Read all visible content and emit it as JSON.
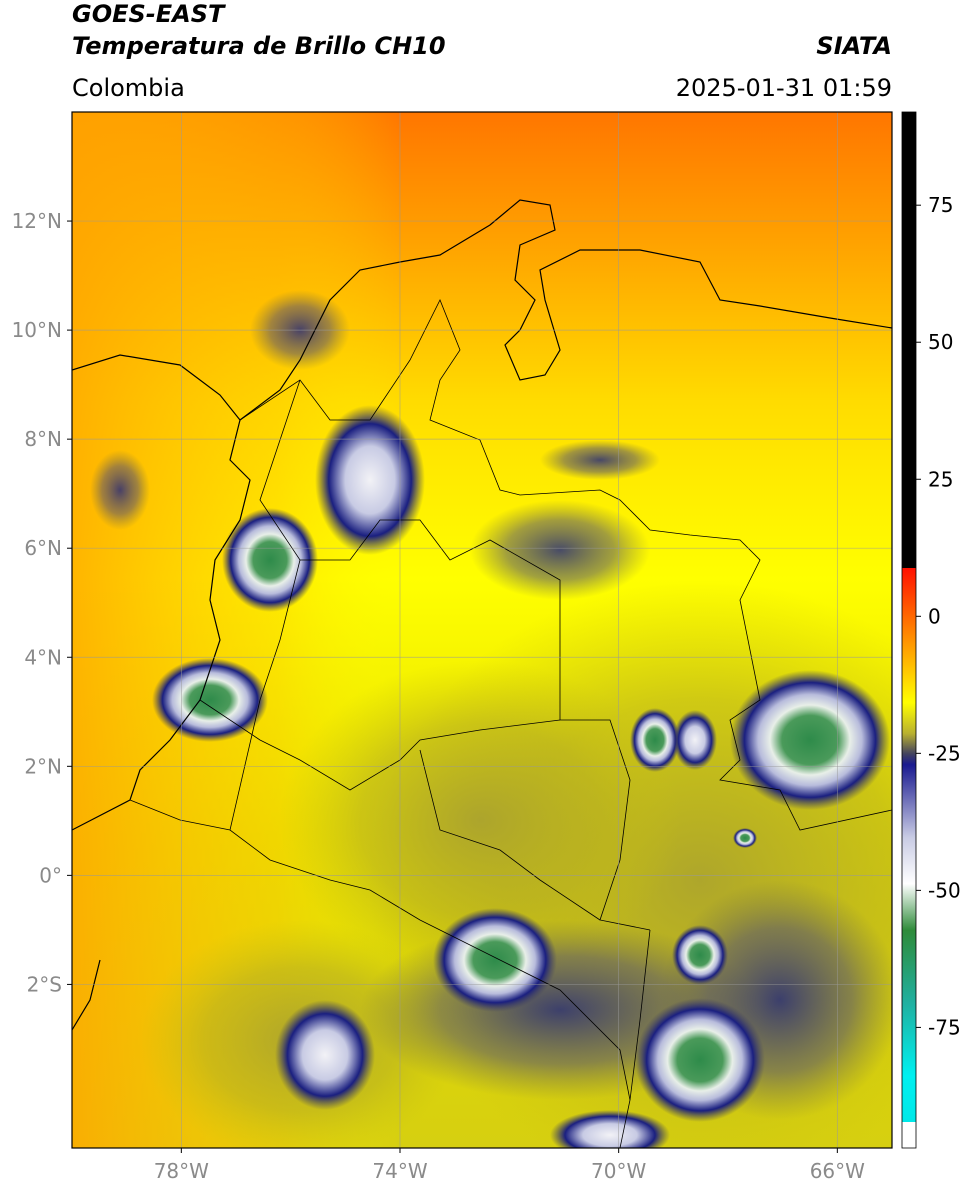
{
  "header": {
    "title": "GOES-EAST",
    "subtitle": "Temperatura de Brillo CH10",
    "region": "Colombia",
    "source": "SIATA",
    "datetime": "2025-01-31 01:59"
  },
  "map": {
    "lon_range": [
      -80,
      -65
    ],
    "lat_range": [
      -5,
      14
    ],
    "lat_ticks": [
      {
        "value": 12,
        "label": "12°N"
      },
      {
        "value": 10,
        "label": "10°N"
      },
      {
        "value": 8,
        "label": "8°N"
      },
      {
        "value": 6,
        "label": "6°N"
      },
      {
        "value": 4,
        "label": "4°N"
      },
      {
        "value": 2,
        "label": "2°N"
      },
      {
        "value": 0,
        "label": "0°"
      },
      {
        "value": -2,
        "label": "2°S"
      }
    ],
    "lon_ticks": [
      {
        "value": -78,
        "label": "78°W"
      },
      {
        "value": -74,
        "label": "74°W"
      },
      {
        "value": -70,
        "label": "70°W"
      },
      {
        "value": -66,
        "label": "66°W"
      }
    ]
  },
  "colorbar": {
    "range": [
      -97,
      92
    ],
    "ticks": [
      75,
      50,
      25,
      0,
      -25,
      -50,
      -75
    ]
  }
}
